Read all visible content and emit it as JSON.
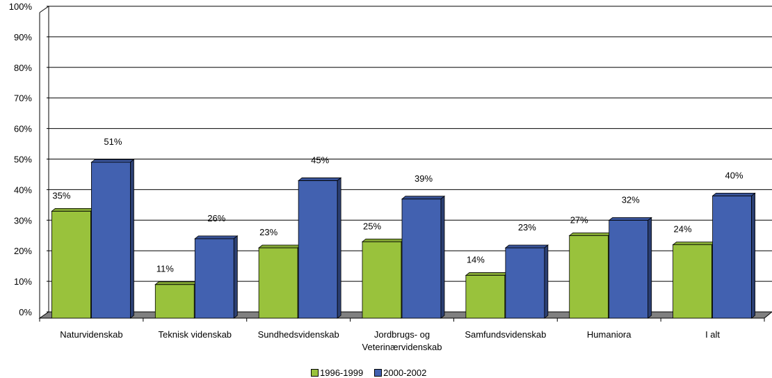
{
  "chart_data": {
    "type": "bar",
    "categories": [
      "Naturvidenskab",
      "Teknisk videnskab",
      "Sundhedsvidenskab",
      "Jordbrugs- og Veterinærvidenskab",
      "Samfundsvidenskab",
      "Humaniora",
      "I alt"
    ],
    "category_lines": [
      [
        "Naturvidenskab"
      ],
      [
        "Teknisk videnskab"
      ],
      [
        "Sundhedsvidenskab"
      ],
      [
        "Jordbrugs- og",
        "Veterinærvidenskab"
      ],
      [
        "Samfundsvidenskab"
      ],
      [
        "Humaniora"
      ],
      [
        "I alt"
      ]
    ],
    "series": [
      {
        "name": "1996-1999",
        "values": [
          35,
          11,
          23,
          25,
          14,
          27,
          24
        ],
        "labels": [
          "35%",
          "11%",
          "23%",
          "25%",
          "14%",
          "27%",
          "24%"
        ],
        "color": "#99c23c"
      },
      {
        "name": "2000-2002",
        "values": [
          51,
          26,
          45,
          39,
          23,
          32,
          40
        ],
        "labels": [
          "51%",
          "26%",
          "45%",
          "39%",
          "23%",
          "32%",
          "40%"
        ],
        "color": "#4261b0"
      }
    ],
    "ylim": [
      0,
      100
    ],
    "yticks": [
      "0%",
      "10%",
      "20%",
      "30%",
      "40%",
      "50%",
      "60%",
      "70%",
      "80%",
      "90%",
      "100%"
    ],
    "grid": true,
    "legend_position": "bottom",
    "title": "",
    "xlabel": "",
    "ylabel": ""
  }
}
